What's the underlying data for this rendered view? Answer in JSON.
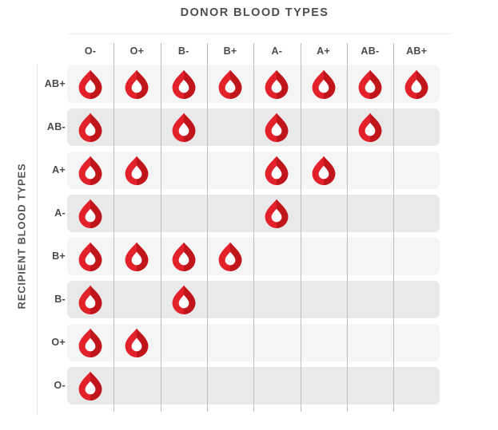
{
  "chart_data": {
    "type": "heatmap",
    "title": "DONOR BLOOD TYPES",
    "ylabel": "RECIPIENT BLOOD TYPES",
    "columns": [
      "O-",
      "O+",
      "B-",
      "B+",
      "A-",
      "A+",
      "AB-",
      "AB+"
    ],
    "rows": [
      "AB+",
      "AB-",
      "A+",
      "A-",
      "B+",
      "B-",
      "O+",
      "O-"
    ],
    "matrix": [
      [
        1,
        1,
        1,
        1,
        1,
        1,
        1,
        1
      ],
      [
        1,
        0,
        1,
        0,
        1,
        0,
        1,
        0
      ],
      [
        1,
        1,
        0,
        0,
        1,
        1,
        0,
        0
      ],
      [
        1,
        0,
        0,
        0,
        1,
        0,
        0,
        0
      ],
      [
        1,
        1,
        1,
        1,
        0,
        0,
        0,
        0
      ],
      [
        1,
        0,
        1,
        0,
        0,
        0,
        0,
        0
      ],
      [
        1,
        1,
        0,
        0,
        0,
        0,
        0,
        0
      ],
      [
        1,
        0,
        0,
        0,
        0,
        0,
        0,
        0
      ]
    ],
    "marker_icon": "blood-drop-icon",
    "legend_position": "none",
    "grid": true
  },
  "colors": {
    "drop_primary": "#e2212a",
    "drop_shadow": "#c1151c",
    "drop_hole": "#ffffff",
    "row_band_light": "#f5f5f6",
    "row_band_dark": "#e9e9ea",
    "grid_line": "#bcbcbc",
    "axis_line": "#e2e2e2",
    "title_text": "#4f4f4f",
    "label_text": "#4a4a4a"
  }
}
